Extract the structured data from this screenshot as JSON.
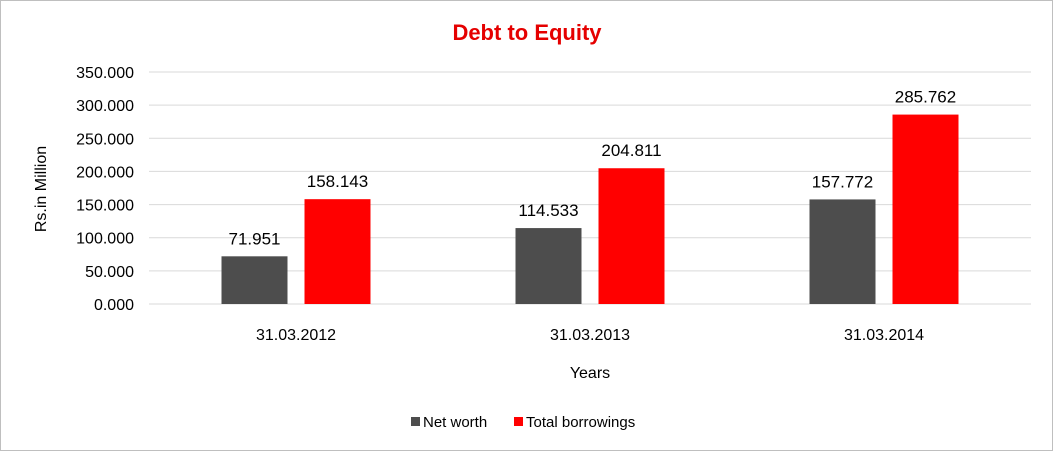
{
  "chart_data": {
    "type": "bar",
    "title": "Debt to Equity",
    "title_color": "#e50000",
    "xlabel": "Years",
    "ylabel": "Rs.in Million",
    "categories": [
      "31.03.2012",
      "31.03.2013",
      "31.03.2014"
    ],
    "series": [
      {
        "name": "Net worth",
        "color": "#4d4d4d",
        "values": [
          71.951,
          114.533,
          157.772
        ],
        "labels": [
          "71.951",
          "114.533",
          "157.772"
        ]
      },
      {
        "name": "Total borrowings",
        "color": "#ff0000",
        "values": [
          158.143,
          204.811,
          285.762
        ],
        "labels": [
          "158.143",
          "204.811",
          "285.762"
        ]
      }
    ],
    "ylim": [
      0,
      350
    ],
    "yticks": [
      0,
      50,
      100,
      150,
      200,
      250,
      300,
      350
    ],
    "ytick_labels": [
      "0.000",
      "50.000",
      "100.000",
      "150.000",
      "200.000",
      "250.000",
      "300.000",
      "350.000"
    ],
    "grid": true,
    "legend_position": "bottom"
  }
}
